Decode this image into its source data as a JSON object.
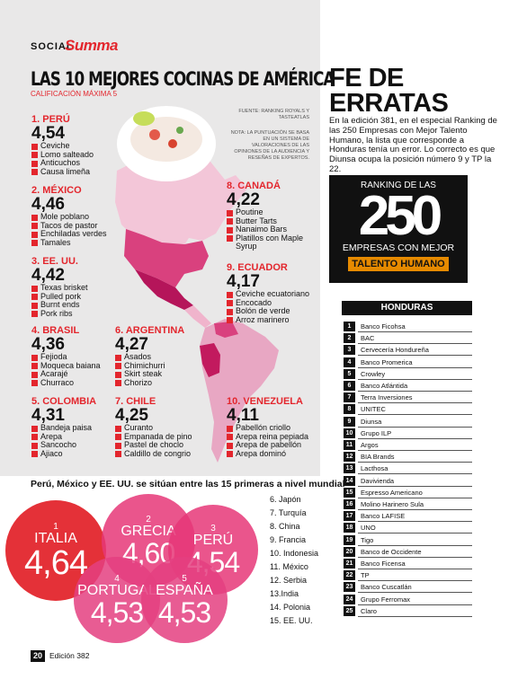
{
  "header": {
    "section": "SOCIAL",
    "brand": "Summa"
  },
  "title": "LAS 10 MEJORES COCINAS DE AMÉRICA",
  "subtitle": "CALIFICACIÓN MÁXIMA 5",
  "source": "FUENTE: RANKING ROYALS Y TASTEATLAS",
  "note": "NOTA: LA PUNTUACIÓN SE BASA EN UN SISTEMA DE VALORACIONES DE LAS OPINIONES DE LA AUDIENCIA Y RESEÑAS DE EXPERTOS.",
  "cuisines": [
    {
      "rank": "1. PERÚ",
      "score": "4,54",
      "dishes": [
        "Ceviche",
        "Lomo salteado",
        "Anticuchos",
        "Causa limeña"
      ]
    },
    {
      "rank": "2. MÉXICO",
      "score": "4,46",
      "dishes": [
        "Mole poblano",
        "Tacos de pastor",
        "Enchiladas verdes",
        "Tamales"
      ]
    },
    {
      "rank": "3. EE. UU.",
      "score": "4,42",
      "dishes": [
        "Texas brisket",
        "Pulled pork",
        "Burnt ends",
        "Pork ribs"
      ]
    },
    {
      "rank": "4. BRASIL",
      "score": "4,36",
      "dishes": [
        "Fejioda",
        "Moqueca baiana",
        "Acarajé",
        "Churraco"
      ]
    },
    {
      "rank": "5. COLOMBIA",
      "score": "4,31",
      "dishes": [
        "Bandeja paisa",
        "Arepa",
        "Sancocho",
        "Ajiaco"
      ]
    },
    {
      "rank": "6. ARGENTINA",
      "score": "4,27",
      "dishes": [
        "Asados",
        "Chimichurri",
        "Skirt steak",
        "Chorizo"
      ]
    },
    {
      "rank": "7. CHILE",
      "score": "4,25",
      "dishes": [
        "Curanto",
        "Empanada de pino",
        "Pastel de choclo",
        "Caldillo de congrio"
      ]
    },
    {
      "rank": "8. CANADÁ",
      "score": "4,22",
      "dishes": [
        "Poutine",
        "Butter Tarts",
        "Nanaimo Bars",
        "Platillos con Maple Syrup"
      ]
    },
    {
      "rank": "9. ECUADOR",
      "score": "4,17",
      "dishes": [
        "Ceviche ecuatoriano",
        "Encocado",
        "Bolón de verde",
        "Arroz marinero"
      ]
    },
    {
      "rank": "10. VENEZUELA",
      "score": "4,11",
      "dishes": [
        "Pabellón criollo",
        "Arepa reina pepiada",
        "Arepa de pabellón",
        "Arepa dominó"
      ]
    }
  ],
  "world": {
    "title": "Perú, México y EE. UU. se sitúan entre las 15 primeras a nivel mundial",
    "top": [
      {
        "rank": "1",
        "name": "ITALIA",
        "score": "4,64"
      },
      {
        "rank": "2",
        "name": "GRECIA",
        "score": "4,60"
      },
      {
        "rank": "3",
        "name": "PERÚ",
        "score": "4,54"
      },
      {
        "rank": "4",
        "name": "PORTUGAL",
        "score": "4,53"
      },
      {
        "rank": "5",
        "name": "ESPAÑA",
        "score": "4,53"
      }
    ],
    "rest": [
      "6. Japón",
      "7. Turquía",
      "8. China",
      "9. Francia",
      "10. Indonesia",
      "11. México",
      "12. Serbia",
      "13.India",
      "14. Polonia",
      "15. EE. UU."
    ]
  },
  "errata": {
    "title": "FE DE ERRATAS",
    "text": "En la edición 381, en el especial Ranking de las 250 Empresas con Mejor Talento Humano, la lista que corresponde a Honduras tenía un error. Lo correcto es que Diunsa ocupa la posición número 9 y TP la 22."
  },
  "logo": {
    "line1": "RANKING DE LAS",
    "number": "250",
    "line2": "EMPRESAS CON MEJOR",
    "line3": "TALENTO HUMANO"
  },
  "table": {
    "header": "HONDURAS",
    "rows": [
      [
        "1",
        "Banco Ficohsa"
      ],
      [
        "2",
        "BAC"
      ],
      [
        "3",
        "Cervecería Hondureña"
      ],
      [
        "4",
        "Banco Promerica"
      ],
      [
        "5",
        "Crowley"
      ],
      [
        "6",
        "Banco Atlántida"
      ],
      [
        "7",
        "Terra Inversiones"
      ],
      [
        "8",
        "UNITEC"
      ],
      [
        "9",
        "Diunsa"
      ],
      [
        "10",
        "Grupo ILP"
      ],
      [
        "11",
        "Argos"
      ],
      [
        "12",
        "BIA Brands"
      ],
      [
        "13",
        "Lacthosa"
      ],
      [
        "14",
        "Davivienda"
      ],
      [
        "15",
        "Espresso Americano"
      ],
      [
        "16",
        "Molino Harinero Sula"
      ],
      [
        "17",
        "Banco LAFISE"
      ],
      [
        "18",
        "UNO"
      ],
      [
        "19",
        "Tigo"
      ],
      [
        "20",
        "Banco de Occidente"
      ],
      [
        "21",
        "Banco Ficensa"
      ],
      [
        "22",
        "TP"
      ],
      [
        "23",
        "Banco Cuscatlán"
      ],
      [
        "24",
        "Grupo Ferromax"
      ],
      [
        "25",
        "Claro"
      ]
    ]
  },
  "footer": {
    "page": "20",
    "edition": "Edición 382"
  }
}
